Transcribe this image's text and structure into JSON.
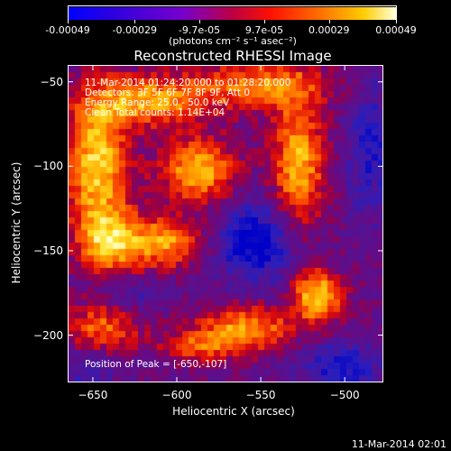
{
  "colorbar": {
    "tick_labels": [
      "-0.00049",
      "-0.00029",
      "-9.7e-05",
      "9.7e-05",
      "0.00029",
      "0.00049"
    ],
    "tick_values": [
      -0.00049,
      -0.00029,
      -9.7e-05,
      9.7e-05,
      0.00029,
      0.00049
    ],
    "min": -0.00049,
    "max": 0.00049,
    "units_label": "(photons cm⁻² s⁻¹ asec⁻²)",
    "colors": [
      "#0000ff",
      "#5500cc",
      "#9900bb",
      "#cc0055",
      "#ff1a00",
      "#ff8800",
      "#ffcc00",
      "#ffffcc"
    ]
  },
  "plot": {
    "title": "Reconstructed RHESSI Image",
    "info_lines": [
      "11-Mar-2014 01:24:20.000 to 01:28:20.000",
      "Detectors: 3F 5F 6F 7F 8F 9F, Att 0",
      "Energy Range: 25.0 - 50.0 keV",
      "Clean     Total counts: 1.14E+04"
    ],
    "peak_text": "Position of Peak = [-650,-107]",
    "xlabel": "Heliocentric X (arcsec)",
    "ylabel": "Heliocentric Y (arcsec)",
    "xlim": [
      -665,
      -477
    ],
    "ylim": [
      -228,
      -40
    ],
    "x_ticks": [
      -650,
      -600,
      -550,
      -500
    ],
    "x_tick_labels": [
      "−650",
      "−600",
      "−550",
      "−500"
    ],
    "y_ticks": [
      -50,
      -100,
      -150,
      -200
    ],
    "y_tick_labels": [
      "−50",
      "−100",
      "−150",
      "−200"
    ]
  },
  "footer": {
    "timestamp": "11-Mar-2014 02:01"
  },
  "chart_data": {
    "type": "heatmap",
    "title": "Reconstructed RHESSI Image",
    "xlabel": "Heliocentric X (arcsec)",
    "ylabel": "Heliocentric Y (arcsec)",
    "xlim": [
      -665,
      -477
    ],
    "ylim": [
      -228,
      -40
    ],
    "colorbar_range": [
      -0.00049,
      0.00049
    ],
    "grid": false,
    "peak": {
      "x": -650,
      "y": -107
    }
  }
}
